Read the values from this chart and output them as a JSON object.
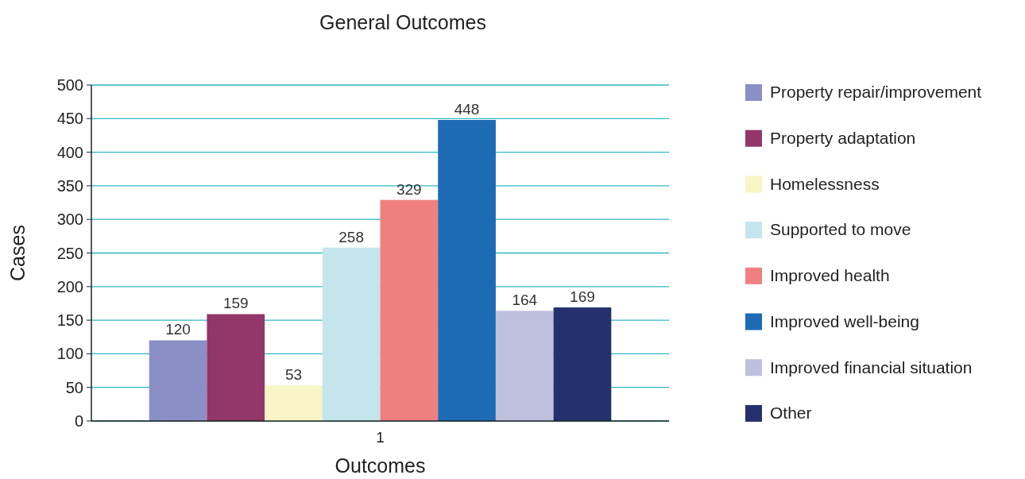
{
  "chart_data": {
    "type": "bar",
    "title": "General Outcomes",
    "xlabel": "Outcomes",
    "ylabel": "Cases",
    "categories": [
      "1"
    ],
    "series": [
      {
        "name": "Property repair/improvement",
        "color": "#8a8fc6",
        "values": [
          120
        ]
      },
      {
        "name": "Property adaptation",
        "color": "#933669",
        "values": [
          159
        ]
      },
      {
        "name": "Homelessness",
        "color": "#f7f5c5",
        "values": [
          53
        ]
      },
      {
        "name": "Supported to move",
        "color": "#c3e5eb",
        "values": [
          258
        ]
      },
      {
        "name": "Improved health",
        "color": "#f08080",
        "values": [
          329
        ]
      },
      {
        "name": "Improved well-being",
        "color": "#1d6bb4",
        "values": [
          448
        ]
      },
      {
        "name": "Improved financial situation",
        "color": "#bfc0de",
        "values": [
          164
        ]
      },
      {
        "name": "Other",
        "color": "#24316d",
        "values": [
          169
        ]
      }
    ],
    "ylim": [
      0,
      500
    ],
    "yticks": [
      0,
      50,
      100,
      150,
      200,
      250,
      300,
      350,
      400,
      450,
      500
    ],
    "grid": "y",
    "legend": "right",
    "data_labels": true
  }
}
